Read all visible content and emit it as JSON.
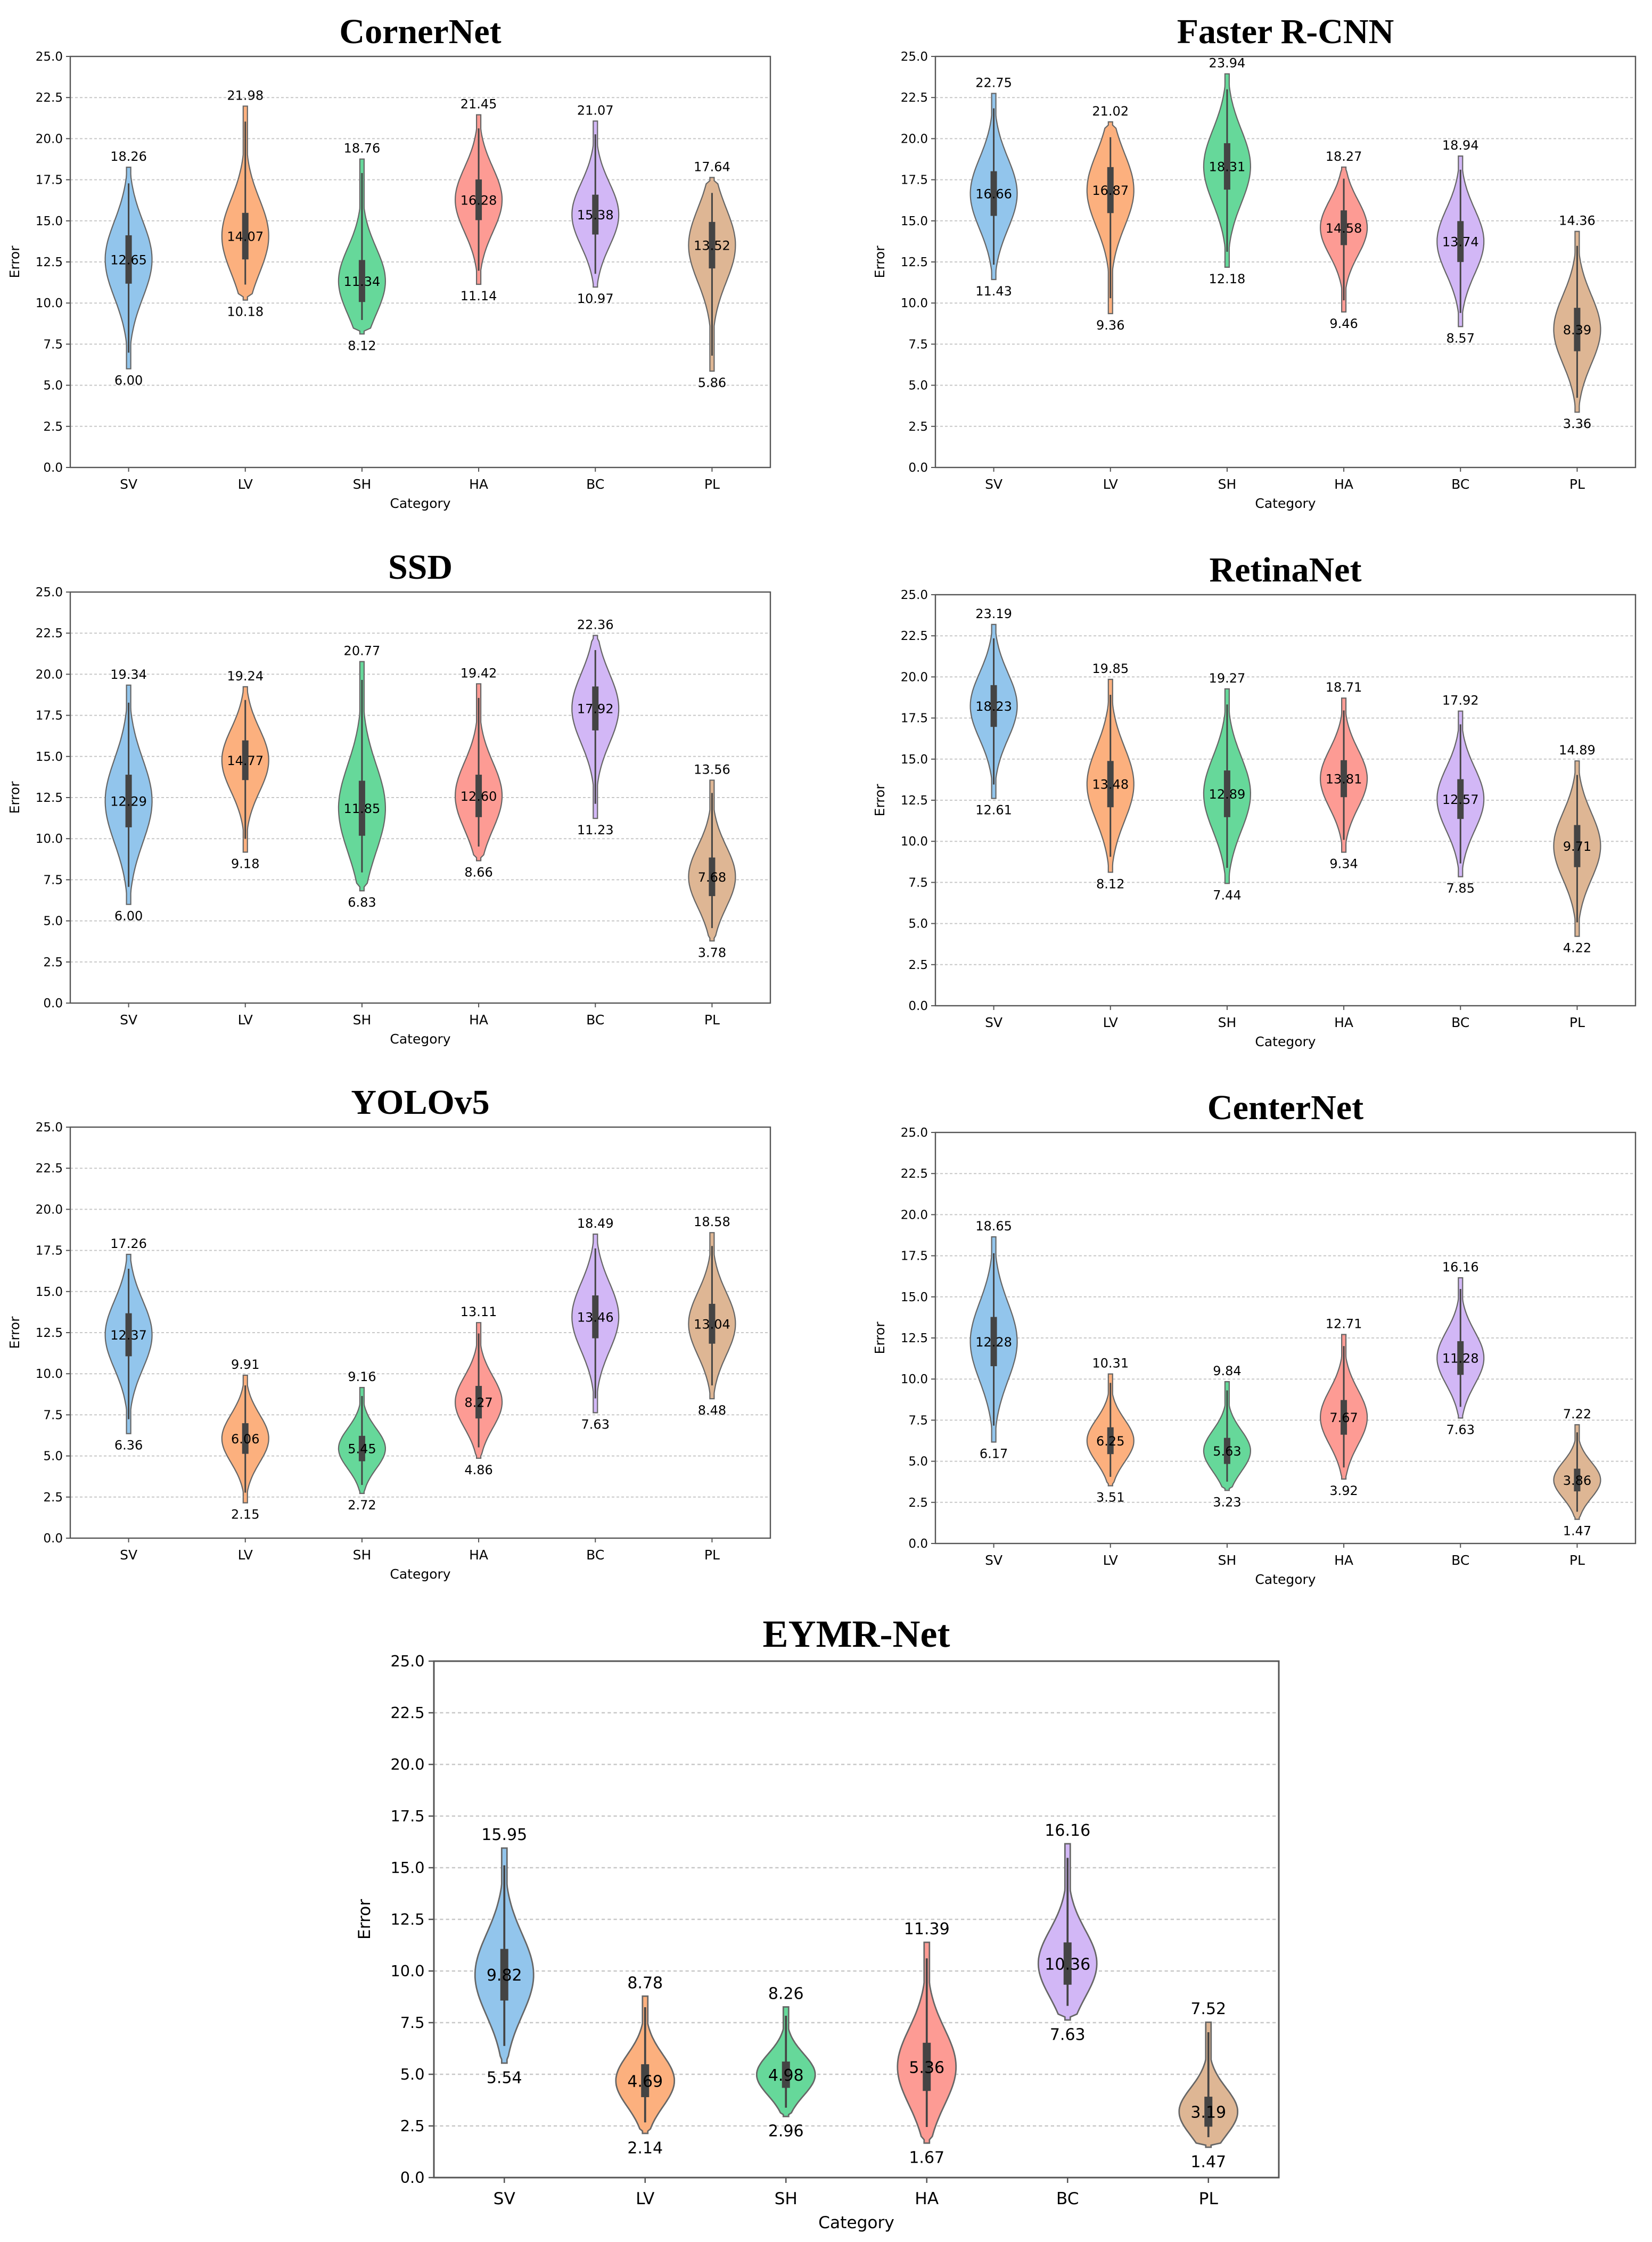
{
  "colors": {
    "SV": "#92c5ec",
    "LV": "#fcb07e",
    "SH": "#66d89a",
    "HA": "#fd9b94",
    "BC": "#d2b7f6",
    "PL": "#deb694",
    "edge": "#666666",
    "box": "#444444"
  },
  "chart_data": [
    {
      "type": "violin",
      "title": "CornerNet",
      "xlabel": "Category",
      "ylabel": "Error",
      "ylim": [
        0,
        25
      ],
      "yticks": [
        "0.0",
        "2.5",
        "5.0",
        "7.5",
        "10.0",
        "12.5",
        "15.0",
        "17.5",
        "20.0",
        "22.5",
        "25.0"
      ],
      "categories": [
        "SV",
        "LV",
        "SH",
        "HA",
        "BC",
        "PL"
      ],
      "max": [
        18.26,
        21.98,
        18.76,
        21.45,
        21.07,
        17.64
      ],
      "median": [
        12.65,
        14.07,
        11.34,
        16.28,
        15.38,
        13.52
      ],
      "min": [
        6.0,
        10.18,
        8.12,
        11.14,
        10.97,
        5.86
      ],
      "max_labels": [
        "18.26",
        "21.98",
        "18.76",
        "21.45",
        "21.07",
        "17.64"
      ],
      "median_labels": [
        "12.65",
        "14.07",
        "11.34",
        "16.28",
        "15.38",
        "13.52"
      ],
      "min_labels": [
        "6.00",
        "10.18",
        "8.12",
        "11.14",
        "10.97",
        "5.86"
      ]
    },
    {
      "type": "violin",
      "title": "Faster R-CNN",
      "xlabel": "Category",
      "ylabel": "Error",
      "ylim": [
        0,
        25
      ],
      "yticks": [
        "0.0",
        "2.5",
        "5.0",
        "7.5",
        "10.0",
        "12.5",
        "15.0",
        "17.5",
        "20.0",
        "22.5",
        "25.0"
      ],
      "categories": [
        "SV",
        "LV",
        "SH",
        "HA",
        "BC",
        "PL"
      ],
      "max": [
        22.75,
        21.02,
        23.94,
        18.27,
        18.94,
        14.36
      ],
      "median": [
        16.66,
        16.87,
        18.31,
        14.58,
        13.74,
        8.39
      ],
      "min": [
        11.43,
        9.36,
        12.18,
        9.46,
        8.57,
        3.36
      ],
      "max_labels": [
        "22.75",
        "21.02",
        "23.94",
        "18.27",
        "18.94",
        "14.36"
      ],
      "median_labels": [
        "16.66",
        "16.87",
        "18.31",
        "14.58",
        "13.74",
        "8.39"
      ],
      "min_labels": [
        "11.43",
        "9.36",
        "12.18",
        "9.46",
        "8.57",
        "3.36"
      ]
    },
    {
      "type": "violin",
      "title": "SSD",
      "xlabel": "Category",
      "ylabel": "Error",
      "ylim": [
        0,
        25
      ],
      "yticks": [
        "0.0",
        "2.5",
        "5.0",
        "7.5",
        "10.0",
        "12.5",
        "15.0",
        "17.5",
        "20.0",
        "22.5",
        "25.0"
      ],
      "categories": [
        "SV",
        "LV",
        "SH",
        "HA",
        "BC",
        "PL"
      ],
      "max": [
        19.34,
        19.24,
        20.77,
        19.42,
        22.36,
        13.56
      ],
      "median": [
        12.29,
        14.77,
        11.85,
        12.6,
        17.92,
        7.68
      ],
      "min": [
        6.0,
        9.18,
        6.83,
        8.66,
        11.23,
        3.78
      ],
      "max_labels": [
        "19.34",
        "19.24",
        "20.77",
        "19.42",
        "22.36",
        "13.56"
      ],
      "median_labels": [
        "12.29",
        "14.77",
        "11.85",
        "12.60",
        "17.92",
        "7.68"
      ],
      "min_labels": [
        "6.00",
        "9.18",
        "6.83",
        "8.66",
        "11.23",
        "3.78"
      ]
    },
    {
      "type": "violin",
      "title": "RetinaNet",
      "xlabel": "Category",
      "ylabel": "Error",
      "ylim": [
        0,
        25
      ],
      "yticks": [
        "0.0",
        "2.5",
        "5.0",
        "7.5",
        "10.0",
        "12.5",
        "15.0",
        "17.5",
        "20.0",
        "22.5",
        "25.0"
      ],
      "categories": [
        "SV",
        "LV",
        "SH",
        "HA",
        "BC",
        "PL"
      ],
      "max": [
        23.19,
        19.85,
        19.27,
        18.71,
        17.92,
        14.89
      ],
      "median": [
        18.23,
        13.48,
        12.89,
        13.81,
        12.57,
        9.71
      ],
      "min": [
        12.61,
        8.12,
        7.44,
        9.34,
        7.85,
        4.22
      ],
      "max_labels": [
        "23.19",
        "19.85",
        "19.27",
        "18.71",
        "17.92",
        "14.89"
      ],
      "median_labels": [
        "18.23",
        "13.48",
        "12.89",
        "13.81",
        "12.57",
        "9.71"
      ],
      "min_labels": [
        "12.61",
        "8.12",
        "7.44",
        "9.34",
        "7.85",
        "4.22"
      ]
    },
    {
      "type": "violin",
      "title": "YOLOv5",
      "xlabel": "Category",
      "ylabel": "Error",
      "ylim": [
        0,
        25
      ],
      "yticks": [
        "0.0",
        "2.5",
        "5.0",
        "7.5",
        "10.0",
        "12.5",
        "15.0",
        "17.5",
        "20.0",
        "22.5",
        "25.0"
      ],
      "categories": [
        "SV",
        "LV",
        "SH",
        "HA",
        "BC",
        "PL"
      ],
      "max": [
        17.26,
        9.91,
        9.16,
        13.11,
        18.49,
        18.58
      ],
      "median": [
        12.37,
        6.06,
        5.45,
        8.27,
        13.46,
        13.04
      ],
      "min": [
        6.36,
        2.15,
        2.72,
        4.86,
        7.63,
        8.48
      ],
      "max_labels": [
        "17.26",
        "9.91",
        "9.16",
        "13.11",
        "18.49",
        "18.58"
      ],
      "median_labels": [
        "12.37",
        "6.06",
        "5.45",
        "8.27",
        "13.46",
        "13.04"
      ],
      "min_labels": [
        "6.36",
        "2.15",
        "2.72",
        "4.86",
        "7.63",
        "8.48"
      ]
    },
    {
      "type": "violin",
      "title": "CenterNet",
      "xlabel": "Category",
      "ylabel": "Error",
      "ylim": [
        0,
        25
      ],
      "yticks": [
        "0.0",
        "2.5",
        "5.0",
        "7.5",
        "10.0",
        "12.5",
        "15.0",
        "17.5",
        "20.0",
        "22.5",
        "25.0"
      ],
      "categories": [
        "SV",
        "LV",
        "SH",
        "HA",
        "BC",
        "PL"
      ],
      "max": [
        18.65,
        10.31,
        9.84,
        12.71,
        16.16,
        7.22
      ],
      "median": [
        12.28,
        6.25,
        5.63,
        7.67,
        11.28,
        3.86
      ],
      "min": [
        6.17,
        3.51,
        3.23,
        3.92,
        7.63,
        1.47
      ],
      "max_labels": [
        "18.65",
        "10.31",
        "9.84",
        "12.71",
        "16.16",
        "7.22"
      ],
      "median_labels": [
        "12.28",
        "6.25",
        "5.63",
        "7.67",
        "11.28",
        "3.86"
      ],
      "min_labels": [
        "6.17",
        "3.51",
        "3.23",
        "3.92",
        "7.63",
        "1.47"
      ]
    },
    {
      "type": "violin",
      "title": "EYMR-Net",
      "xlabel": "Category",
      "ylabel": "Error",
      "ylim": [
        0,
        25
      ],
      "yticks": [
        "0.0",
        "2.5",
        "5.0",
        "7.5",
        "10.0",
        "12.5",
        "15.0",
        "17.5",
        "20.0",
        "22.5",
        "25.0"
      ],
      "categories": [
        "SV",
        "LV",
        "SH",
        "HA",
        "BC",
        "PL"
      ],
      "max": [
        15.95,
        8.78,
        8.26,
        11.39,
        16.16,
        7.52
      ],
      "median": [
        9.82,
        4.69,
        4.98,
        5.36,
        10.36,
        3.19
      ],
      "min": [
        5.54,
        2.14,
        2.96,
        1.67,
        7.63,
        1.47
      ],
      "max_labels": [
        "15.95",
        "8.78",
        "8.26",
        "11.39",
        "16.16",
        "7.52"
      ],
      "median_labels": [
        "9.82",
        "4.69",
        "4.98",
        "5.36",
        "10.36",
        "3.19"
      ],
      "min_labels": [
        "5.54",
        "2.14",
        "2.96",
        "1.67",
        "7.63",
        "1.47"
      ]
    }
  ]
}
